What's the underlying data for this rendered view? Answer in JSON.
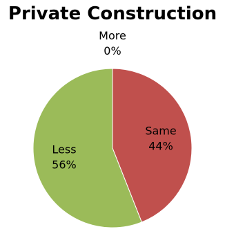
{
  "chart_data": {
    "type": "pie",
    "title": "Private Construction",
    "slices": [
      {
        "label": "More",
        "value": 0,
        "percent_label": "0%",
        "color": "#4f81bd"
      },
      {
        "label": "Same",
        "value": 44,
        "percent_label": "44%",
        "color": "#c0504d"
      },
      {
        "label": "Less",
        "value": 56,
        "percent_label": "56%",
        "color": "#9bbb59"
      }
    ],
    "legend": "none",
    "start_angle_deg": 0,
    "direction": "clockwise"
  }
}
